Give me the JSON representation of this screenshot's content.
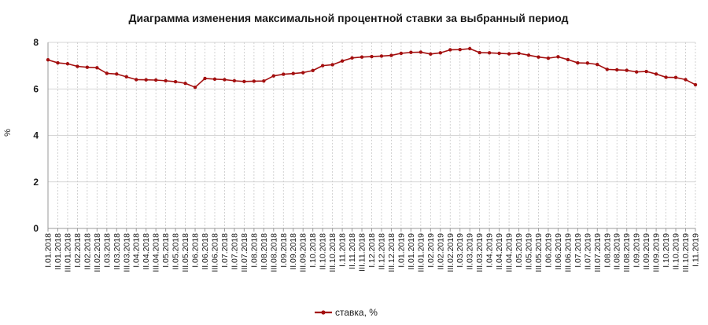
{
  "chart_data": {
    "type": "line",
    "title": "Диаграмма изменения максимальной процентной ставки за выбранный период",
    "xlabel": "",
    "ylabel": "%",
    "ylim": [
      0,
      8
    ],
    "yticks": [
      0,
      2,
      4,
      6,
      8
    ],
    "grid": true,
    "legend_position": "bottom",
    "colors": {
      "line": "#a30f0f",
      "grid": "#c8c8c8",
      "axis": "#9a9a9a"
    },
    "x": [
      "I.01.2018",
      "II.01.2018",
      "III.01.2018",
      "I.02.2018",
      "II.02.2018",
      "III.02.2018",
      "I.03.2018",
      "II.03.2018",
      "III.03.2018",
      "I.04.2018",
      "II.04.2018",
      "III.04.2018",
      "I.05.2018",
      "II.05.2018",
      "III.05.2018",
      "I.06.2018",
      "II.06.2018",
      "III.06.2018",
      "I.07.2018",
      "II.07.2018",
      "III.07.2018",
      "I.08.2018",
      "II.08.2018",
      "III.08.2018",
      "I.09.2018",
      "II.09.2018",
      "III.09.2018",
      "I.10.2018",
      "II.10.2018",
      "III.10.2018",
      "I.11.2018",
      "II.11.2018",
      "III.11.2018",
      "I.12.2018",
      "II.12.2018",
      "III.12.2018",
      "I.01.2019",
      "II.01.2019",
      "III.01.2019",
      "I.02.2019",
      "II.02.2019",
      "III.02.2019",
      "I.03.2019",
      "II.03.2019",
      "III.03.2019",
      "I.04.2019",
      "II.04.2019",
      "III.04.2019",
      "I.05.2019",
      "II.05.2019",
      "III.05.2019",
      "I.06.2019",
      "II.06.2019",
      "III.06.2019",
      "I.07.2019",
      "II.07.2019",
      "III.07.2019",
      "I.08.2019",
      "II.08.2019",
      "III.08.2019",
      "I.09.2019",
      "II.09.2019",
      "III.09.2019",
      "I.10.2019",
      "II.10.2019",
      "III.10.2019",
      "I.11.2019"
    ],
    "series": [
      {
        "name": "ставка, %",
        "values": [
          7.25,
          7.12,
          7.08,
          6.97,
          6.93,
          6.91,
          6.67,
          6.64,
          6.52,
          6.4,
          6.39,
          6.38,
          6.35,
          6.31,
          6.24,
          6.07,
          6.45,
          6.42,
          6.4,
          6.35,
          6.32,
          6.33,
          6.34,
          6.56,
          6.63,
          6.66,
          6.7,
          6.79,
          7.0,
          7.04,
          7.2,
          7.33,
          7.37,
          7.39,
          7.41,
          7.44,
          7.53,
          7.57,
          7.58,
          7.5,
          7.55,
          7.68,
          7.69,
          7.73,
          7.56,
          7.55,
          7.53,
          7.51,
          7.53,
          7.45,
          7.37,
          7.32,
          7.38,
          7.26,
          7.12,
          7.11,
          7.05,
          6.84,
          6.82,
          6.8,
          6.73,
          6.75,
          6.64,
          6.5,
          6.49,
          6.4,
          6.18
        ]
      }
    ]
  }
}
